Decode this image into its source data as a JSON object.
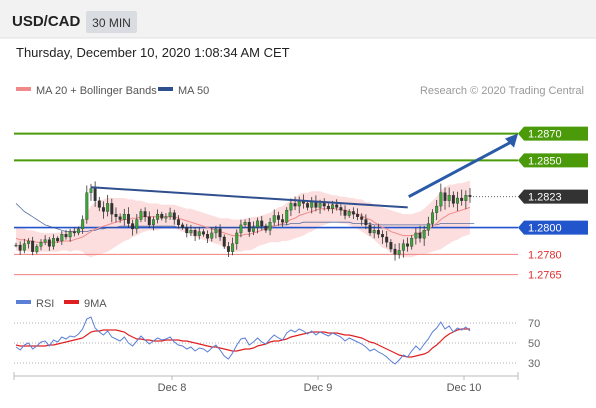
{
  "header": {
    "symbol": "USD/CAD",
    "timeframe": "30 MIN",
    "datetime": "Thursday, December 10, 2020 1:08:34 AM CET"
  },
  "legend": {
    "items": [
      {
        "label": "MA 20 + Bollinger Bands",
        "color": "#f08a8a"
      },
      {
        "label": "MA 50",
        "color": "#2f4f8f"
      }
    ],
    "credit": "Research © 2020 Trading Central"
  },
  "rsi_legend": {
    "items": [
      {
        "label": "RSI",
        "color": "#5b7fd6"
      },
      {
        "label": "9MA",
        "color": "#e02020"
      }
    ]
  },
  "chart_data": [
    {
      "type": "candlestick",
      "yaxis": "price",
      "ylim": [
        1.2755,
        1.2895
      ],
      "grid": false,
      "x_ticks": [
        "Dec 8",
        "Dec 9",
        "Dec 10"
      ],
      "levels": [
        {
          "value": 1.287,
          "label": "1.2870",
          "style": "resistance",
          "color": "#4a9a0a"
        },
        {
          "value": 1.285,
          "label": "1.2850",
          "style": "resistance",
          "color": "#4a9a0a"
        },
        {
          "value": 1.2823,
          "label": "1.2823",
          "style": "last-price",
          "color": "#333333"
        },
        {
          "value": 1.28,
          "label": "1.2800",
          "style": "pivot",
          "color": "#2255cc"
        },
        {
          "value": 1.278,
          "label": "1.2780",
          "style": "support",
          "color": "#e03030"
        },
        {
          "value": 1.2765,
          "label": "1.2765",
          "style": "support",
          "color": "#e03030"
        }
      ],
      "trendline": {
        "from": {
          "t": 0.15,
          "price": 1.283
        },
        "to": {
          "t": 0.86,
          "price": 1.2815
        },
        "color": "#2f4f8f"
      },
      "forecast_arrow": {
        "from": {
          "t": 0.87,
          "price": 1.2823
        },
        "to": {
          "t": 1.0,
          "price": 1.287
        },
        "color": "#2a5aa8"
      },
      "series": [
        {
          "name": "price",
          "values": [
            1.2787,
            1.2783,
            1.2788,
            1.279,
            1.2782,
            1.2786,
            1.2789,
            1.2791,
            1.2786,
            1.2792,
            1.279,
            1.2795,
            1.2793,
            1.2797,
            1.2796,
            1.2799,
            1.2806,
            1.2826,
            1.2829,
            1.282,
            1.2815,
            1.2812,
            1.2818,
            1.281,
            1.2808,
            1.2806,
            1.281,
            1.2803,
            1.2799,
            1.2806,
            1.2812,
            1.2808,
            1.2802,
            1.2806,
            1.281,
            1.2807,
            1.2808,
            1.2811,
            1.2806,
            1.2802,
            1.28,
            1.2796,
            1.2798,
            1.2794,
            1.2797,
            1.2795,
            1.2792,
            1.2796,
            1.2799,
            1.2793,
            1.2786,
            1.2782,
            1.2788,
            1.2796,
            1.2802,
            1.2804,
            1.2797,
            1.28,
            1.2805,
            1.2801,
            1.2798,
            1.2804,
            1.2809,
            1.2806,
            1.2804,
            1.2813,
            1.2818,
            1.2816,
            1.282,
            1.2818,
            1.2815,
            1.2819,
            1.2815,
            1.2818,
            1.2816,
            1.2814,
            1.2817,
            1.2815,
            1.2813,
            1.2809,
            1.2812,
            1.281,
            1.2808,
            1.2806,
            1.2802,
            1.2796,
            1.2798,
            1.2795,
            1.2793,
            1.2789,
            1.2784,
            1.278,
            1.2783,
            1.2788,
            1.2786,
            1.2792,
            1.2796,
            1.2792,
            1.2798,
            1.2803,
            1.2811,
            1.2816,
            1.2826,
            1.282,
            1.2824,
            1.2818,
            1.2822,
            1.282,
            1.2824,
            1.2823
          ]
        },
        {
          "name": "ma20",
          "values": [
            1.2792,
            1.2791,
            1.2791,
            1.279,
            1.279,
            1.2789,
            1.2789,
            1.2789,
            1.2789,
            1.2789,
            1.2789,
            1.279,
            1.279,
            1.279,
            1.2791,
            1.2792,
            1.2793,
            1.2795,
            1.2797,
            1.2799,
            1.28,
            1.2801,
            1.2802,
            1.2803,
            1.2804,
            1.2805,
            1.2806,
            1.2806,
            1.2807,
            1.2807,
            1.2808,
            1.2808,
            1.2808,
            1.2808,
            1.2808,
            1.2808,
            1.2808,
            1.2808,
            1.2808,
            1.2807,
            1.2806,
            1.2805,
            1.2804,
            1.2803,
            1.2802,
            1.2801,
            1.28,
            1.2799,
            1.2798,
            1.2797,
            1.2796,
            1.2795,
            1.2794,
            1.2794,
            1.2794,
            1.2795,
            1.2795,
            1.2796,
            1.2797,
            1.2798,
            1.2799,
            1.28,
            1.2801,
            1.2802,
            1.2803,
            1.2804,
            1.2806,
            1.2807,
            1.2809,
            1.281,
            1.2811,
            1.2812,
            1.2813,
            1.2814,
            1.2814,
            1.2814,
            1.2814,
            1.2814,
            1.2813,
            1.2813,
            1.2812,
            1.2811,
            1.281,
            1.2809,
            1.2807,
            1.2806,
            1.2804,
            1.2802,
            1.28,
            1.2799,
            1.2797,
            1.2796,
            1.2795,
            1.2794,
            1.2794,
            1.2794,
            1.2795,
            1.2796,
            1.2797,
            1.2799,
            1.2801,
            1.2803,
            1.2806,
            1.2808,
            1.281,
            1.2811,
            1.2812,
            1.2813,
            1.2814,
            1.2815
          ]
        },
        {
          "name": "ma50",
          "values": [
            1.2818,
            1.2815,
            1.2812,
            1.281,
            1.2808,
            1.2806,
            1.2804,
            1.2802,
            1.2801,
            1.28,
            1.2799,
            1.2798,
            1.2797,
            1.2797,
            1.2797,
            1.2797,
            1.2797,
            1.2797,
            1.2798,
            1.2798,
            1.2799,
            1.2799,
            1.28,
            1.28,
            1.28,
            1.2801,
            1.2801,
            1.2801,
            1.2801,
            1.2801,
            1.2801,
            1.2801,
            1.2801,
            1.2801,
            1.2801,
            1.2801,
            1.2801,
            1.2801,
            1.2801,
            1.28,
            1.28,
            1.28,
            1.28,
            1.28,
            1.28,
            1.28,
            1.28,
            1.28,
            1.28,
            1.28,
            1.28,
            1.28,
            1.28,
            1.28,
            1.28,
            1.28,
            1.28,
            1.2801,
            1.2801,
            1.2801,
            1.2801,
            1.2801,
            1.2801,
            1.2802,
            1.2802,
            1.2802,
            1.2803,
            1.2803,
            1.2803,
            1.2804,
            1.2804,
            1.2804,
            1.2804,
            1.2804,
            1.2804,
            1.2804,
            1.2804,
            1.2804,
            1.2804,
            1.2804,
            1.2804,
            1.2803,
            1.2803,
            1.2803,
            1.2803,
            1.2803,
            1.2802,
            1.2802,
            1.2802,
            1.2802,
            1.2802,
            1.2802,
            1.2802,
            1.2802,
            1.2802,
            1.2802,
            1.2802,
            1.2802,
            1.2802,
            1.2802,
            1.2802,
            1.2802,
            1.2803,
            1.2803,
            1.2803,
            1.2803,
            1.2803,
            1.2803,
            1.2803,
            1.2803,
            1.2803
          ]
        }
      ],
      "bollinger_halfwidth": [
        0.0009,
        0.0009,
        0.0008,
        0.0008,
        0.0008,
        0.0008,
        0.0007,
        0.0007,
        0.0007,
        0.0007,
        0.0007,
        0.0007,
        0.0007,
        0.0008,
        0.0008,
        0.0009,
        0.0011,
        0.0016,
        0.0019,
        0.002,
        0.002,
        0.002,
        0.002,
        0.0019,
        0.0018,
        0.0017,
        0.0016,
        0.0015,
        0.0014,
        0.0013,
        0.0012,
        0.0011,
        0.001,
        0.001,
        0.001,
        0.0009,
        0.0009,
        0.0009,
        0.0009,
        0.0009,
        0.0009,
        0.0009,
        0.001,
        0.001,
        0.001,
        0.001,
        0.001,
        0.001,
        0.001,
        0.001,
        0.0011,
        0.0012,
        0.0012,
        0.0012,
        0.0012,
        0.0012,
        0.0012,
        0.0012,
        0.0011,
        0.0011,
        0.0011,
        0.0011,
        0.0012,
        0.0013,
        0.0013,
        0.0014,
        0.0015,
        0.0015,
        0.0016,
        0.0016,
        0.0015,
        0.0015,
        0.0014,
        0.0013,
        0.0012,
        0.0011,
        0.001,
        0.001,
        0.001,
        0.001,
        0.001,
        0.0011,
        0.0011,
        0.0012,
        0.0012,
        0.0013,
        0.0013,
        0.0014,
        0.0015,
        0.0015,
        0.0016,
        0.0016,
        0.0016,
        0.0016,
        0.0016,
        0.0016,
        0.0016,
        0.0016,
        0.0017,
        0.0018,
        0.0019,
        0.002,
        0.0022,
        0.0022,
        0.0022,
        0.0021,
        0.0021,
        0.002,
        0.002,
        0.002
      ]
    },
    {
      "type": "line",
      "yaxis": "rsi",
      "ylim": [
        25,
        75
      ],
      "y_ticks": [
        70,
        50,
        30
      ],
      "series": [
        {
          "name": "RSI",
          "values": [
            46,
            43,
            48,
            50,
            44,
            47,
            51,
            52,
            47,
            53,
            51,
            56,
            54,
            57,
            56,
            59,
            64,
            74,
            76,
            65,
            61,
            58,
            62,
            56,
            54,
            52,
            56,
            50,
            47,
            52,
            57,
            53,
            49,
            52,
            55,
            53,
            54,
            56,
            51,
            48,
            47,
            44,
            46,
            42,
            45,
            44,
            41,
            45,
            48,
            43,
            37,
            34,
            40,
            48,
            54,
            55,
            48,
            51,
            55,
            51,
            49,
            54,
            58,
            55,
            53,
            60,
            63,
            61,
            64,
            62,
            59,
            62,
            58,
            61,
            59,
            57,
            60,
            58,
            56,
            52,
            55,
            53,
            51,
            49,
            46,
            42,
            44,
            41,
            39,
            36,
            32,
            29,
            33,
            38,
            36,
            42,
            47,
            43,
            49,
            54,
            61,
            65,
            71,
            64,
            67,
            61,
            65,
            63,
            66,
            62
          ]
        },
        {
          "name": "9MA",
          "values": [
            48,
            47,
            47,
            47,
            47,
            47,
            47,
            47,
            48,
            48,
            49,
            50,
            51,
            52,
            53,
            54,
            55,
            58,
            61,
            62,
            62,
            63,
            63,
            63,
            63,
            62,
            61,
            58,
            56,
            54,
            54,
            53,
            53,
            52,
            52,
            52,
            53,
            53,
            53,
            53,
            52,
            52,
            51,
            50,
            49,
            48,
            47,
            46,
            46,
            45,
            44,
            43,
            42,
            42,
            43,
            44,
            44,
            45,
            47,
            48,
            49,
            51,
            52,
            52,
            53,
            54,
            56,
            57,
            58,
            59,
            60,
            61,
            61,
            61,
            61,
            60,
            60,
            60,
            59,
            58,
            58,
            57,
            56,
            55,
            53,
            51,
            50,
            48,
            46,
            44,
            42,
            40,
            38,
            37,
            36,
            36,
            37,
            38,
            39,
            41,
            45,
            48,
            52,
            56,
            59,
            61,
            63,
            64,
            64,
            64
          ]
        }
      ]
    }
  ]
}
